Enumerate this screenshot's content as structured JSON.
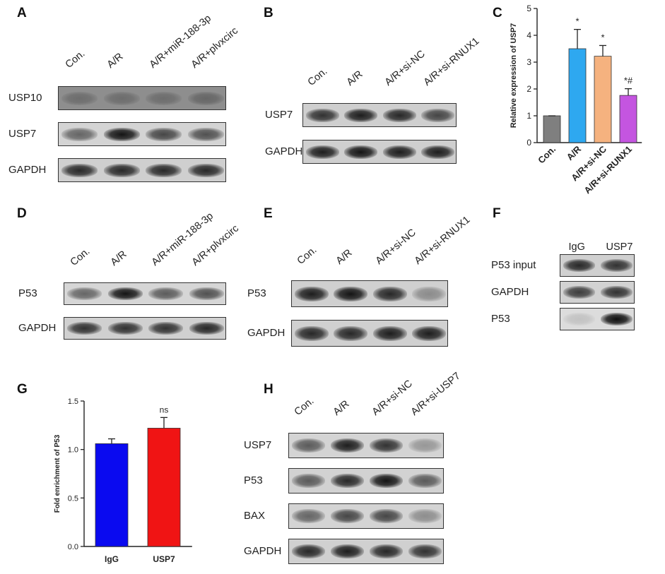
{
  "panel_letters": [
    "A",
    "B",
    "C",
    "D",
    "E",
    "F",
    "G",
    "H"
  ],
  "panel_A": {
    "columns": [
      "Con.",
      "A/R",
      "A/R+miR-188-3p",
      "A/R+plvxcirc"
    ],
    "rows": [
      {
        "label": "USP10",
        "intensity": [
          0.25,
          0.25,
          0.25,
          0.3
        ],
        "bg": "#8e8e8e"
      },
      {
        "label": "USP7",
        "intensity": [
          0.55,
          0.95,
          0.7,
          0.65
        ],
        "bg": "#d4d4d4"
      },
      {
        "label": "GAPDH",
        "intensity": [
          0.85,
          0.85,
          0.85,
          0.85
        ],
        "bg": "#cfcfcf"
      }
    ]
  },
  "panel_B": {
    "columns": [
      "Con.",
      "A/R",
      "A/R+si-NC",
      "A/R+si-RNUX1"
    ],
    "rows": [
      {
        "label": "USP7",
        "intensity": [
          0.8,
          0.9,
          0.85,
          0.7
        ],
        "bg": "#cfcfcf"
      },
      {
        "label": "GAPDH",
        "intensity": [
          0.9,
          0.95,
          0.9,
          0.9
        ],
        "bg": "#cfcfcf"
      }
    ]
  },
  "panel_D": {
    "columns": [
      "Con.",
      "A/R",
      "A/R+miR-188-3p",
      "A/R+plvxcirc"
    ],
    "rows": [
      {
        "label": "P53",
        "intensity": [
          0.55,
          0.95,
          0.6,
          0.65
        ],
        "bg": "#d6d6d6"
      },
      {
        "label": "GAPDH",
        "intensity": [
          0.8,
          0.8,
          0.8,
          0.85
        ],
        "bg": "#d0d0d0"
      }
    ]
  },
  "panel_E": {
    "columns": [
      "Con.",
      "A/R",
      "A/R+si-NC",
      "A/R+si-RNUX1"
    ],
    "rows": [
      {
        "label": "P53",
        "intensity": [
          0.9,
          0.95,
          0.85,
          0.35
        ],
        "bg": "#d0d0d0"
      },
      {
        "label": "GAPDH",
        "intensity": [
          0.85,
          0.85,
          0.9,
          0.9
        ],
        "bg": "#d0d0d0"
      }
    ]
  },
  "panel_F": {
    "columns": [
      "IgG",
      "USP7"
    ],
    "rows": [
      {
        "label": "P53 input",
        "intensity": [
          0.85,
          0.8
        ],
        "bg": "#d0d0d0"
      },
      {
        "label": "GAPDH",
        "intensity": [
          0.75,
          0.8
        ],
        "bg": "#d2d2d2"
      },
      {
        "label": "P53",
        "intensity": [
          0.12,
          0.98
        ],
        "bg": "#dcdcdc"
      }
    ]
  },
  "panel_H": {
    "columns": [
      "Con.",
      "A/R",
      "A/R+si-NC",
      "A/R+si-USP7"
    ],
    "rows": [
      {
        "label": "USP7",
        "intensity": [
          0.6,
          0.9,
          0.8,
          0.3
        ],
        "bg": "#d4d4d4"
      },
      {
        "label": "P53",
        "intensity": [
          0.6,
          0.85,
          0.95,
          0.6
        ],
        "bg": "#d2d2d2"
      },
      {
        "label": "BAX",
        "intensity": [
          0.55,
          0.7,
          0.7,
          0.35
        ],
        "bg": "#d4d4d4"
      },
      {
        "label": "GAPDH",
        "intensity": [
          0.85,
          0.9,
          0.85,
          0.8
        ],
        "bg": "#d0d0d0"
      }
    ]
  },
  "chart_data": [
    {
      "panel": "C",
      "type": "bar",
      "categories": [
        "Con.",
        "A/R",
        "A/R+si-NC",
        "A/R+si-RUNX1"
      ],
      "values": [
        1.0,
        3.5,
        3.22,
        1.76
      ],
      "errors": [
        0.0,
        0.72,
        0.4,
        0.25
      ],
      "annotations": [
        "",
        "*",
        "*",
        "*#"
      ],
      "colors": [
        "#7f7f7f",
        "#2ea8f0",
        "#f5b27f",
        "#c455e0"
      ],
      "ylabel": "Relative expression of USP7",
      "ylim": [
        0,
        5
      ],
      "yticks": [
        0,
        1,
        2,
        3,
        4,
        5
      ]
    },
    {
      "panel": "G",
      "type": "bar",
      "categories": [
        "IgG",
        "USP7"
      ],
      "values": [
        1.06,
        1.22
      ],
      "errors": [
        0.05,
        0.11
      ],
      "annotations": [
        "",
        "ns"
      ],
      "colors": [
        "#0a0af0",
        "#f01414"
      ],
      "ylabel": "Fold enrichment of P53",
      "ylim": [
        0,
        1.5
      ],
      "yticks": [
        "0.0",
        "0.5",
        "1.0",
        "1.5"
      ]
    }
  ]
}
